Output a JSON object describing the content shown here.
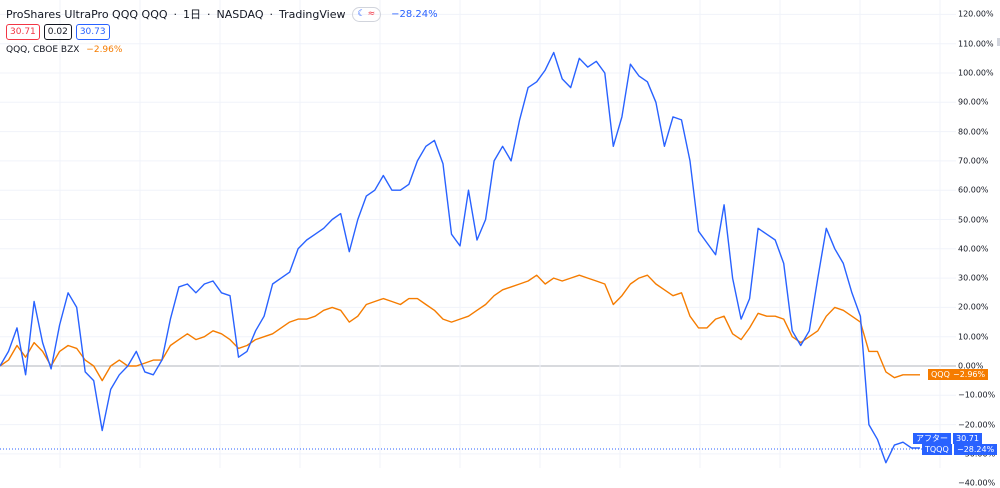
{
  "header": {
    "title": "ProShares UltraPro QQQ",
    "symbol": "QQQ",
    "interval": "1日",
    "exchange": "NASDAQ",
    "source": "TradingView",
    "sep": "·",
    "mode_moon": "☾",
    "mode_wave": "≈",
    "change_pct": "−28.24%"
  },
  "quotes": {
    "bid": "30.71",
    "spread": "0.02",
    "ask": "30.73"
  },
  "compare": {
    "label": "QQQ, CBOE BZX",
    "change_pct": "−2.96%"
  },
  "yaxis": {
    "ticks": [
      "120.00%",
      "110.00%",
      "100.00%",
      "90.00%",
      "80.00%",
      "70.00%",
      "60.00%",
      "50.00%",
      "40.00%",
      "30.00%",
      "20.00%",
      "10.00%",
      "0.00%",
      "−10.00%",
      "−20.00%",
      "−30.00%",
      "−40.00%"
    ],
    "tag_qqq_name": "QQQ",
    "tag_qqq_value": "−2.96%",
    "tag_after_label": "アフター",
    "tag_after_value": "30.71",
    "tag_tqqq_name": "TQQQ",
    "tag_tqqq_value": "−28.24%"
  },
  "colors": {
    "tqqq": "#2962ff",
    "qqq": "#f57c00",
    "grid": "#f0f3fa",
    "zero": "#b2b5be"
  },
  "chart_data": {
    "type": "line",
    "ylim": [
      -34,
      122
    ],
    "yunit": "%",
    "grid": true,
    "series": [
      {
        "name": "TQQQ",
        "values": [
          0,
          5,
          13,
          -3,
          22,
          8,
          -1,
          14,
          25,
          20,
          -2,
          -5,
          -22,
          -8,
          -3,
          0,
          5,
          -2,
          -3,
          2,
          16,
          27,
          28,
          25,
          28,
          29,
          25,
          24,
          3,
          5,
          12,
          17,
          28,
          30,
          32,
          40,
          43,
          45,
          47,
          50,
          52,
          39,
          50,
          58,
          60,
          65,
          60,
          60,
          62,
          70,
          75,
          77,
          69,
          45,
          41,
          60,
          43,
          50,
          70,
          75,
          70,
          84,
          95,
          97,
          101,
          107,
          98,
          95,
          105,
          102,
          104,
          100,
          75,
          85,
          103,
          99,
          97,
          90,
          75,
          85,
          84,
          70,
          46,
          42,
          38,
          55,
          30,
          16,
          23,
          47,
          45,
          43,
          35,
          12,
          7,
          12,
          30,
          47,
          40,
          35,
          25,
          17,
          -20,
          -25,
          -33,
          -27,
          -26,
          -28,
          -28
        ]
      },
      {
        "name": "QQQ",
        "values": [
          0,
          2,
          7,
          3,
          8,
          5,
          0,
          5,
          7,
          6,
          2,
          0,
          -5,
          0,
          2,
          0,
          0,
          1,
          2,
          2,
          7,
          9,
          11,
          9,
          10,
          12,
          11,
          9,
          6,
          7,
          9,
          10,
          11,
          13,
          15,
          16,
          16,
          17,
          19,
          20,
          19,
          15,
          17,
          21,
          22,
          23,
          22,
          21,
          23,
          23,
          21,
          19,
          16,
          15,
          16,
          17,
          19,
          21,
          24,
          26,
          27,
          28,
          29,
          31,
          28,
          30,
          29,
          30,
          31,
          30,
          29,
          28,
          21,
          24,
          28,
          30,
          31,
          28,
          26,
          24,
          25,
          17,
          13,
          13,
          16,
          17,
          11,
          9,
          13,
          18,
          17,
          17,
          16,
          10,
          8,
          10,
          12,
          17,
          20,
          19,
          17,
          15,
          5,
          5,
          -2,
          -4,
          -3,
          -3,
          -3
        ]
      }
    ]
  }
}
